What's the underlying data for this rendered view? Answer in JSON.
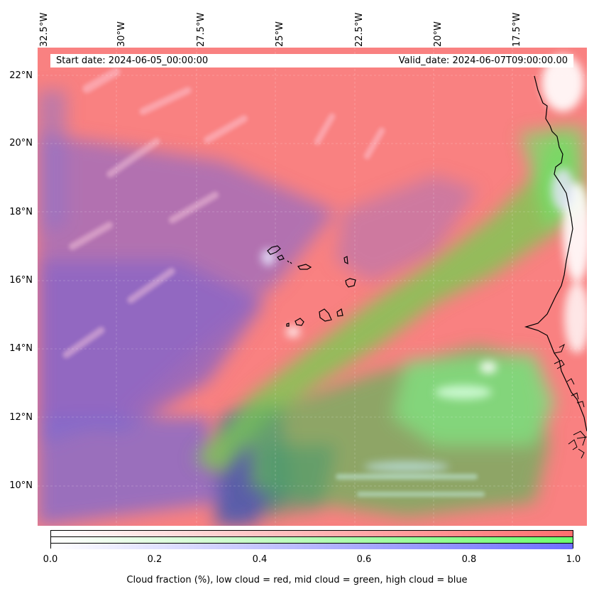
{
  "map": {
    "start_date": "Start date: 2024-06-05_00:00:00",
    "valid_date": "Valid_date: 2024-06-07T09:00:00.00",
    "lon_labels": [
      "32.5°W",
      "30°W",
      "27.5°W",
      "25°W",
      "22.5°W",
      "20°W",
      "17.5°W"
    ],
    "lat_labels": [
      "22°N",
      "20°N",
      "18°N",
      "16°N",
      "14°N",
      "12°N",
      "10°N"
    ],
    "colors": {
      "low_cloud": "#ff7f7f",
      "mid_cloud": "#7fff7f",
      "high_cloud": "#7f7fff",
      "coastline": "#000000"
    }
  },
  "colorbar": {
    "ticks": [
      "0.0",
      "0.2",
      "0.4",
      "0.6",
      "0.8",
      "1.0"
    ],
    "label": "Cloud fraction (%), low cloud = red, mid cloud = green, high cloud = blue"
  }
}
